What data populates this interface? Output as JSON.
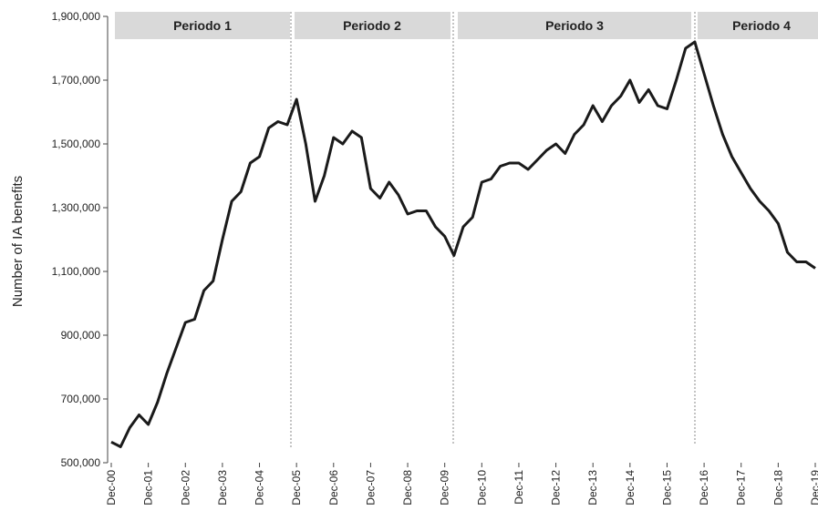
{
  "chart_data": {
    "type": "line",
    "y_axis_label": "Number of IA benefits",
    "periods": [
      "Periodo 1",
      "Periodo 2",
      "Periodo 3",
      "Periodo 4"
    ],
    "categories": [
      "Dec-00",
      null,
      null,
      null,
      "Dec-01",
      null,
      null,
      null,
      "Dec-02",
      null,
      null,
      null,
      "Dec-03",
      null,
      null,
      null,
      "Dec-04",
      null,
      null,
      null,
      "Dec-05",
      null,
      null,
      null,
      "Dec-06",
      null,
      null,
      null,
      "Dec-07",
      null,
      null,
      null,
      "Dec-08",
      null,
      null,
      null,
      "Dec-09",
      null,
      null,
      null,
      "Dec-10",
      null,
      null,
      null,
      "Dec-11",
      null,
      null,
      null,
      "Dec-12",
      null,
      null,
      null,
      "Dec-13",
      null,
      null,
      null,
      "Dec-14",
      null,
      null,
      null,
      "Dec-15",
      null,
      null,
      null,
      "Dec-16",
      null,
      null,
      null,
      "Dec-17",
      null,
      null,
      null,
      "Dec-18",
      null,
      null,
      null,
      "Dec-19"
    ],
    "series": [
      {
        "name": "IA benefits",
        "color": "#1a1a1a",
        "values": [
          565000,
          550000,
          610000,
          650000,
          620000,
          690000,
          780000,
          860000,
          940000,
          950000,
          1040000,
          1070000,
          1200000,
          1320000,
          1350000,
          1440000,
          1460000,
          1550000,
          1570000,
          1560000,
          1640000,
          1500000,
          1320000,
          1400000,
          1520000,
          1500000,
          1540000,
          1520000,
          1360000,
          1330000,
          1380000,
          1340000,
          1280000,
          1290000,
          1290000,
          1240000,
          1210000,
          1150000,
          1240000,
          1270000,
          1380000,
          1390000,
          1430000,
          1440000,
          1440000,
          1420000,
          1450000,
          1480000,
          1500000,
          1470000,
          1530000,
          1560000,
          1620000,
          1570000,
          1620000,
          1650000,
          1700000,
          1630000,
          1670000,
          1620000,
          1610000,
          1700000,
          1800000,
          1820000,
          1720000,
          1620000,
          1530000,
          1460000,
          1410000,
          1360000,
          1320000,
          1290000,
          1250000,
          1160000,
          1130000,
          1130000,
          1110000
        ]
      }
    ],
    "ylim": [
      500000,
      1900000
    ],
    "yticks": [
      {
        "value": 500000,
        "label": "500,000"
      },
      {
        "value": 700000,
        "label": "700,000"
      },
      {
        "value": 900000,
        "label": "900,000"
      },
      {
        "value": 1100000,
        "label": "1,100,000"
      },
      {
        "value": 1300000,
        "label": "1,300,000"
      },
      {
        "value": 1500000,
        "label": "1,500,000"
      },
      {
        "value": 1700000,
        "label": "1,700,000"
      },
      {
        "value": 1900000,
        "label": "1,900,000"
      }
    ],
    "grid": false
  }
}
